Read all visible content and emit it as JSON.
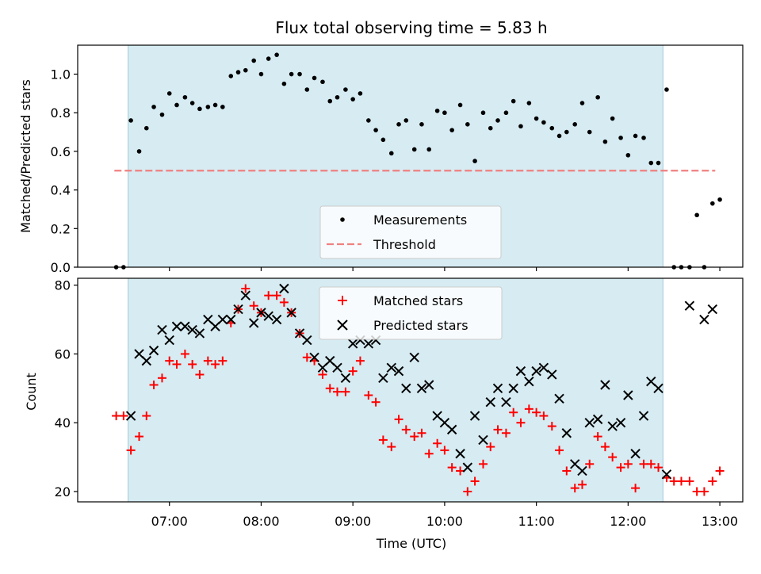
{
  "chart_data": [
    {
      "type": "scatter",
      "title": "Flux total observing time = 5.83 h",
      "xlabel": "",
      "ylabel": "Matched/Predicted stars",
      "ylim": [
        0,
        1.15
      ],
      "xlim_hours": [
        6.0,
        13.25
      ],
      "yticks": [
        0.0,
        0.2,
        0.4,
        0.6,
        0.8,
        1.0
      ],
      "ytick_labels": [
        "0.0",
        "0.2",
        "0.4",
        "0.6",
        "0.8",
        "1.0"
      ],
      "shaded_interval_hours": [
        6.55,
        12.38
      ],
      "threshold": {
        "name": "Threshold",
        "value": 0.5,
        "x_range_hours": [
          6.4,
          12.95
        ],
        "color": "#f08080"
      },
      "legend": {
        "placement": "lower-center",
        "entries": [
          "Measurements",
          "Threshold"
        ]
      },
      "series": [
        {
          "name": "Measurements",
          "color": "#000000",
          "x": [
            6.42,
            6.5,
            6.58,
            6.67,
            6.75,
            6.83,
            6.92,
            7.0,
            7.08,
            7.17,
            7.25,
            7.33,
            7.42,
            7.5,
            7.58,
            7.67,
            7.75,
            7.83,
            7.92,
            8.0,
            8.08,
            8.17,
            8.25,
            8.33,
            8.42,
            8.5,
            8.58,
            8.67,
            8.75,
            8.83,
            8.92,
            9.0,
            9.08,
            9.17,
            9.25,
            9.33,
            9.42,
            9.5,
            9.58,
            9.67,
            9.75,
            9.83,
            9.92,
            10.0,
            10.08,
            10.17,
            10.25,
            10.33,
            10.42,
            10.5,
            10.58,
            10.67,
            10.75,
            10.83,
            10.92,
            11.0,
            11.08,
            11.17,
            11.25,
            11.33,
            11.42,
            11.5,
            11.58,
            11.67,
            11.75,
            11.83,
            11.92,
            12.0,
            12.08,
            12.17,
            12.25,
            12.33,
            12.42,
            12.5,
            12.58,
            12.67,
            12.75,
            12.83,
            12.92,
            13.0
          ],
          "y": [
            0.0,
            0.0,
            0.76,
            0.6,
            0.72,
            0.83,
            0.79,
            0.9,
            0.84,
            0.88,
            0.85,
            0.82,
            0.83,
            0.84,
            0.83,
            0.99,
            1.01,
            1.02,
            1.07,
            1.0,
            1.08,
            1.1,
            0.95,
            1.0,
            1.0,
            0.92,
            0.98,
            0.96,
            0.86,
            0.88,
            0.92,
            0.87,
            0.9,
            0.76,
            0.71,
            0.66,
            0.59,
            0.74,
            0.76,
            0.61,
            0.74,
            0.61,
            0.81,
            0.8,
            0.71,
            0.84,
            0.74,
            0.55,
            0.8,
            0.72,
            0.76,
            0.8,
            0.86,
            0.73,
            0.85,
            0.77,
            0.75,
            0.72,
            0.68,
            0.7,
            0.74,
            0.85,
            0.7,
            0.88,
            0.65,
            0.77,
            0.67,
            0.58,
            0.68,
            0.67,
            0.54,
            0.54,
            0.92,
            0.0,
            0.0,
            0.0,
            0.27,
            0.0,
            0.33,
            0.35
          ]
        }
      ]
    },
    {
      "type": "scatter",
      "title": "",
      "xlabel": "Time (UTC)",
      "ylabel": "Count",
      "ylim": [
        17,
        82
      ],
      "xlim_hours": [
        6.0,
        13.25
      ],
      "yticks": [
        20,
        40,
        60,
        80
      ],
      "ytick_labels": [
        "20",
        "40",
        "60",
        "80"
      ],
      "xticks_hours": [
        7,
        8,
        9,
        10,
        11,
        12,
        13
      ],
      "xtick_labels": [
        "07:00",
        "08:00",
        "09:00",
        "10:00",
        "11:00",
        "12:00",
        "13:00"
      ],
      "shaded_interval_hours": [
        6.55,
        12.38
      ],
      "legend": {
        "placement": "upper-center",
        "entries": [
          "Matched stars",
          "Predicted stars"
        ]
      },
      "series": [
        {
          "name": "Matched stars",
          "marker": "plus",
          "color": "#ff0000",
          "x": [
            6.42,
            6.5,
            6.58,
            6.67,
            6.75,
            6.83,
            6.92,
            7.0,
            7.08,
            7.17,
            7.25,
            7.33,
            7.42,
            7.5,
            7.58,
            7.67,
            7.75,
            7.83,
            7.92,
            8.0,
            8.08,
            8.17,
            8.25,
            8.33,
            8.42,
            8.5,
            8.58,
            8.67,
            8.75,
            8.83,
            8.92,
            9.0,
            9.08,
            9.17,
            9.25,
            9.33,
            9.42,
            9.5,
            9.58,
            9.67,
            9.75,
            9.83,
            9.92,
            10.0,
            10.08,
            10.17,
            10.25,
            10.33,
            10.42,
            10.5,
            10.58,
            10.67,
            10.75,
            10.83,
            10.92,
            11.0,
            11.08,
            11.17,
            11.25,
            11.33,
            11.42,
            11.5,
            11.58,
            11.67,
            11.75,
            11.83,
            11.92,
            12.0,
            12.08,
            12.17,
            12.25,
            12.33,
            12.42,
            12.5,
            12.58,
            12.67,
            12.75,
            12.83,
            12.92,
            13.0
          ],
          "y": [
            42,
            42,
            32,
            36,
            42,
            51,
            53,
            58,
            57,
            60,
            57,
            54,
            58,
            57,
            58,
            69,
            73,
            79,
            74,
            72,
            77,
            77,
            75,
            72,
            66,
            59,
            58,
            54,
            50,
            49,
            49,
            55,
            58,
            48,
            46,
            35,
            33,
            41,
            38,
            36,
            37,
            31,
            34,
            32,
            27,
            26,
            20,
            23,
            28,
            33,
            38,
            37,
            43,
            40,
            44,
            43,
            42,
            39,
            32,
            26,
            21,
            22,
            28,
            36,
            33,
            30,
            27,
            28,
            21,
            28,
            28,
            27,
            24,
            23,
            23,
            23,
            20,
            20,
            23,
            26
          ]
        },
        {
          "name": "Predicted stars",
          "marker": "x",
          "color": "#000000",
          "x": [
            6.58,
            6.67,
            6.75,
            6.83,
            6.92,
            7.0,
            7.08,
            7.17,
            7.25,
            7.33,
            7.42,
            7.5,
            7.58,
            7.67,
            7.75,
            7.83,
            7.92,
            8.0,
            8.08,
            8.17,
            8.25,
            8.33,
            8.42,
            8.5,
            8.58,
            8.67,
            8.75,
            8.83,
            8.92,
            9.0,
            9.08,
            9.17,
            9.25,
            9.33,
            9.42,
            9.5,
            9.58,
            9.67,
            9.75,
            9.83,
            9.92,
            10.0,
            10.08,
            10.17,
            10.25,
            10.33,
            10.42,
            10.5,
            10.58,
            10.67,
            10.75,
            10.83,
            10.92,
            11.0,
            11.08,
            11.17,
            11.25,
            11.33,
            11.42,
            11.5,
            11.58,
            11.67,
            11.75,
            11.83,
            11.92,
            12.0,
            12.08,
            12.17,
            12.25,
            12.33,
            12.42,
            12.67,
            12.83,
            12.92
          ],
          "y": [
            42,
            60,
            58,
            61,
            67,
            64,
            68,
            68,
            67,
            66,
            70,
            68,
            70,
            70,
            73,
            77,
            69,
            72,
            71,
            70,
            79,
            72,
            66,
            64,
            59,
            56,
            58,
            56,
            53,
            63,
            64,
            63,
            64,
            53,
            56,
            55,
            50,
            59,
            50,
            51,
            42,
            40,
            38,
            31,
            27,
            42,
            35,
            46,
            50,
            46,
            50,
            55,
            52,
            55,
            56,
            54,
            47,
            37,
            28,
            26,
            40,
            41,
            51,
            39,
            40,
            48,
            31,
            42,
            52,
            50,
            25,
            74,
            70,
            73
          ]
        }
      ]
    }
  ]
}
